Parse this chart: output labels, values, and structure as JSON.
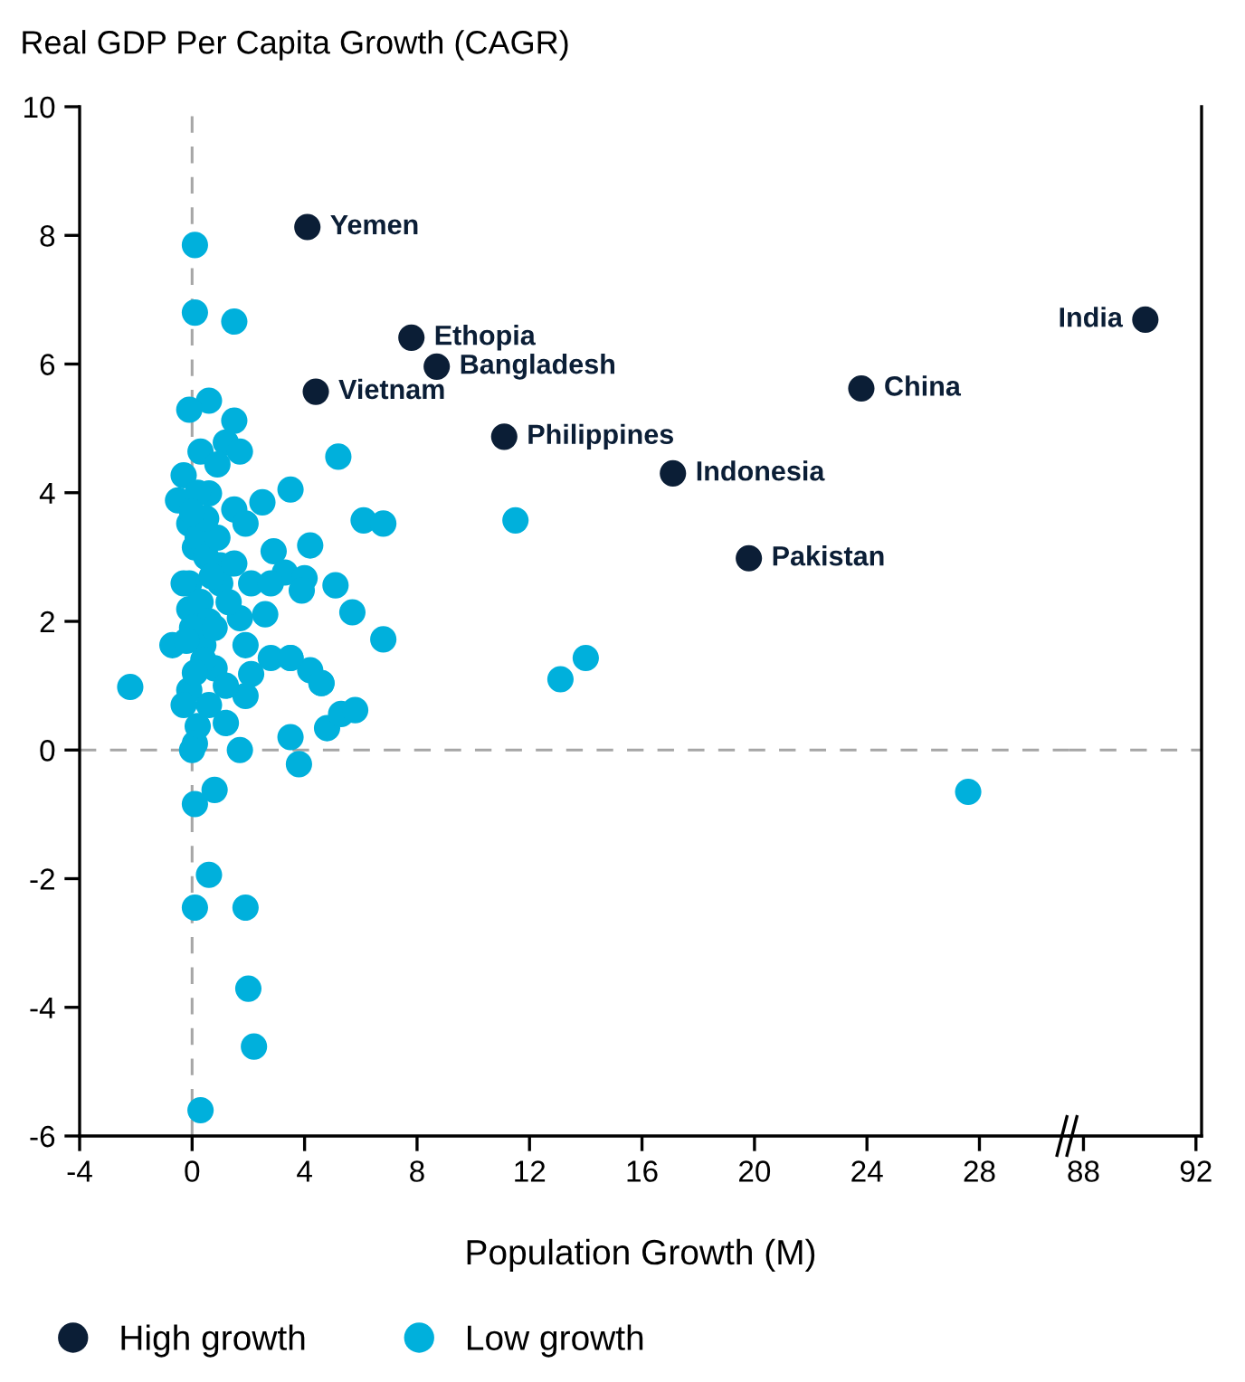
{
  "chart_data": [
    {
      "type": "scatter",
      "ylabel": "Real GDP Per Capita Growth (CAGR)",
      "xlabel": "Population Growth (M)",
      "xlim": [
        -4,
        31.2
      ],
      "xticks": [
        -4,
        0,
        4,
        8,
        12,
        16,
        20,
        24,
        28
      ],
      "ylim": [
        -6,
        10
      ],
      "yticks": [
        -6,
        -4,
        -2,
        0,
        2,
        4,
        6,
        8,
        10
      ],
      "grid": false,
      "legend": "bottom",
      "marker": "circle",
      "ref_lines": [
        {
          "axis": "y",
          "value": 0,
          "color": "#a6a6a6",
          "line_style": "dashed"
        },
        {
          "axis": "x",
          "value": 0,
          "color": "#a6a6a6",
          "line_style": "dashed"
        }
      ],
      "series": [
        {
          "name": "High growth",
          "color": "#0b1e36",
          "x": [
            4.1,
            7.8,
            8.7,
            4.4,
            11.1,
            17.1,
            19.8,
            23.8
          ],
          "values": [
            8.13,
            6.41,
            5.96,
            5.57,
            4.87,
            4.3,
            2.98,
            5.62
          ]
        },
        {
          "name": "Low growth",
          "color": "#00b0dc",
          "x": [
            0.1,
            0.1,
            1.5,
            0.6,
            -0.1,
            1.5,
            1.2,
            1.7,
            5.2,
            0.3,
            0.9,
            -0.3,
            -0.5,
            0.6,
            1.5,
            2.5,
            3.5,
            6.1,
            6.8,
            -0.1,
            1.9,
            2.9,
            4.2,
            0.1,
            1.0,
            3.3,
            4.0,
            5.1,
            -0.1,
            2.1,
            5.7,
            -0.3,
            1.0,
            3.9,
            2.8,
            6.8,
            -0.1,
            1.7,
            2.6,
            -0.7,
            0.4,
            1.9,
            2.8,
            3.5,
            4.2,
            4.6,
            -2.2,
            -0.1,
            0.8,
            2.1,
            1.9,
            -0.3,
            0.6,
            1.2,
            0.2,
            0.1,
            0.0,
            1.7,
            3.5,
            4.8,
            5.3,
            5.8,
            3.8,
            0.8,
            0.1,
            0.6,
            0.1,
            1.9,
            2.0,
            2.2,
            0.3,
            11.5,
            13.1,
            14.0,
            27.6,
            3.5,
            4.6,
            0.2,
            0.5,
            0.3,
            0.6,
            0.0,
            0.4,
            0.1,
            0.8,
            1.3,
            0.9,
            0.2,
            0.5,
            1.2,
            -0.2,
            0.7,
            1.5,
            0.0
          ],
          "values": [
            7.85,
            6.8,
            6.66,
            5.43,
            5.29,
            5.12,
            4.78,
            4.64,
            4.56,
            4.64,
            4.44,
            4.27,
            3.88,
            3.99,
            3.74,
            3.85,
            4.05,
            3.57,
            3.52,
            3.52,
            3.52,
            3.09,
            3.18,
            3.15,
            2.87,
            2.76,
            2.67,
            2.56,
            2.59,
            2.59,
            2.14,
            2.59,
            2.59,
            2.48,
            2.59,
            1.72,
            2.19,
            2.05,
            2.11,
            1.63,
            1.63,
            1.63,
            1.43,
            1.43,
            1.24,
            1.04,
            0.98,
            0.93,
            1.27,
            1.18,
            0.84,
            0.7,
            0.7,
            0.42,
            0.37,
            0.1,
            0.0,
            0.0,
            0.2,
            0.34,
            0.56,
            0.62,
            -0.22,
            -0.62,
            -0.84,
            -1.94,
            -2.45,
            -2.45,
            -3.71,
            -4.61,
            -5.6,
            3.57,
            1.1,
            1.43,
            -0.65,
            1.43,
            1.04,
            3.3,
            3.0,
            2.3,
            2.0,
            1.9,
            1.4,
            1.2,
            1.9,
            2.3,
            3.3,
            4.0,
            3.6,
            1.0,
            1.7,
            2.7,
            2.9,
            3.7
          ]
        }
      ],
      "annotations": [
        {
          "text": "Yemen",
          "x": 4.1,
          "y": 8.13
        },
        {
          "text": "Ethopia",
          "x": 7.8,
          "y": 6.41
        },
        {
          "text": "Bangladesh",
          "x": 8.7,
          "y": 5.96
        },
        {
          "text": "Vietnam",
          "x": 4.4,
          "y": 5.57
        },
        {
          "text": "Philippines",
          "x": 11.1,
          "y": 4.87
        },
        {
          "text": "Indonesia",
          "x": 17.1,
          "y": 4.3
        },
        {
          "text": "Pakistan",
          "x": 19.8,
          "y": 2.98
        },
        {
          "text": "China",
          "x": 23.8,
          "y": 5.62
        }
      ]
    },
    {
      "type": "scatter",
      "xlim": [
        87.5,
        92.2
      ],
      "xticks": [
        88,
        92
      ],
      "ylim": [
        -6,
        10
      ],
      "tick_labels": "x",
      "grid": false,
      "marker": "circle",
      "ref_lines": [
        {
          "axis": "y",
          "value": 0,
          "color": "#a6a6a6",
          "line_style": "dashed"
        }
      ],
      "series": [
        {
          "color": "#0b1e36",
          "x": [
            90.2
          ],
          "values": [
            6.69
          ]
        }
      ],
      "annotations": [
        {
          "text": "India",
          "x": 90.2,
          "y": 6.69
        }
      ]
    }
  ]
}
